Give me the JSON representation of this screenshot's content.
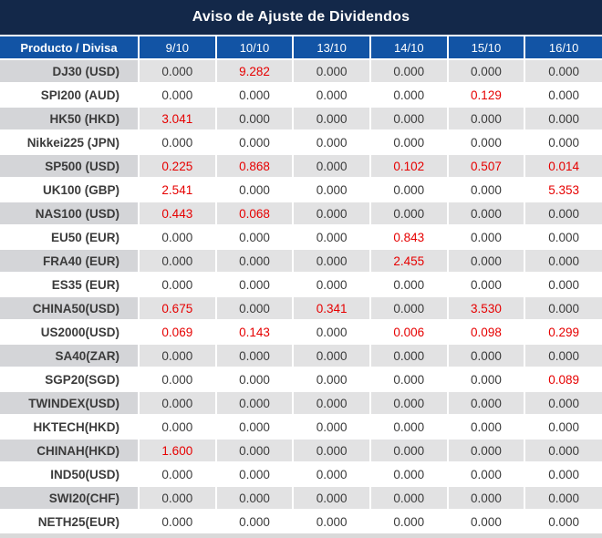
{
  "title": "Aviso de Ajuste de Dividendos",
  "colors": {
    "title_bg": "#132849",
    "header_bg": "#1254a5",
    "negative_value": "#e60000",
    "value_text": "#3b3b3b",
    "row_alt_bg": "#e2e2e3",
    "row_alt_name_bg": "#d4d5d8",
    "row_bg": "#ffffff"
  },
  "chart_data": {
    "type": "table",
    "title": "Aviso de Ajuste de Dividendos",
    "product_header": "Producto / Divisa",
    "date_columns": [
      "9/10",
      "10/10",
      "13/10",
      "14/10",
      "15/10",
      "16/10"
    ],
    "negative_color_meaning": "non-zero dividend adjustment shown in red",
    "rows": [
      {
        "product": "DJ30 (USD)",
        "values": [
          "0.000",
          "9.282",
          "0.000",
          "0.000",
          "0.000",
          "0.000"
        ],
        "red": [
          false,
          true,
          false,
          false,
          false,
          false
        ]
      },
      {
        "product": "SPI200 (AUD)",
        "values": [
          "0.000",
          "0.000",
          "0.000",
          "0.000",
          "0.129",
          "0.000"
        ],
        "red": [
          false,
          false,
          false,
          false,
          true,
          false
        ]
      },
      {
        "product": "HK50 (HKD)",
        "values": [
          "3.041",
          "0.000",
          "0.000",
          "0.000",
          "0.000",
          "0.000"
        ],
        "red": [
          true,
          false,
          false,
          false,
          false,
          false
        ]
      },
      {
        "product": "Nikkei225 (JPN)",
        "values": [
          "0.000",
          "0.000",
          "0.000",
          "0.000",
          "0.000",
          "0.000"
        ],
        "red": [
          false,
          false,
          false,
          false,
          false,
          false
        ]
      },
      {
        "product": "SP500 (USD)",
        "values": [
          "0.225",
          "0.868",
          "0.000",
          "0.102",
          "0.507",
          "0.014"
        ],
        "red": [
          true,
          true,
          false,
          true,
          true,
          true
        ]
      },
      {
        "product": "UK100 (GBP)",
        "values": [
          "2.541",
          "0.000",
          "0.000",
          "0.000",
          "0.000",
          "5.353"
        ],
        "red": [
          true,
          false,
          false,
          false,
          false,
          true
        ]
      },
      {
        "product": "NAS100 (USD)",
        "values": [
          "0.443",
          "0.068",
          "0.000",
          "0.000",
          "0.000",
          "0.000"
        ],
        "red": [
          true,
          true,
          false,
          false,
          false,
          false
        ]
      },
      {
        "product": "EU50 (EUR)",
        "values": [
          "0.000",
          "0.000",
          "0.000",
          "0.843",
          "0.000",
          "0.000"
        ],
        "red": [
          false,
          false,
          false,
          true,
          false,
          false
        ]
      },
      {
        "product": "FRA40 (EUR)",
        "values": [
          "0.000",
          "0.000",
          "0.000",
          "2.455",
          "0.000",
          "0.000"
        ],
        "red": [
          false,
          false,
          false,
          true,
          false,
          false
        ]
      },
      {
        "product": "ES35 (EUR)",
        "values": [
          "0.000",
          "0.000",
          "0.000",
          "0.000",
          "0.000",
          "0.000"
        ],
        "red": [
          false,
          false,
          false,
          false,
          false,
          false
        ]
      },
      {
        "product": "CHINA50(USD)",
        "values": [
          "0.675",
          "0.000",
          "0.341",
          "0.000",
          "3.530",
          "0.000"
        ],
        "red": [
          true,
          false,
          true,
          false,
          true,
          false
        ]
      },
      {
        "product": "US2000(USD)",
        "values": [
          "0.069",
          "0.143",
          "0.000",
          "0.006",
          "0.098",
          "0.299"
        ],
        "red": [
          true,
          true,
          false,
          true,
          true,
          true
        ]
      },
      {
        "product": "SA40(ZAR)",
        "values": [
          "0.000",
          "0.000",
          "0.000",
          "0.000",
          "0.000",
          "0.000"
        ],
        "red": [
          false,
          false,
          false,
          false,
          false,
          false
        ]
      },
      {
        "product": "SGP20(SGD)",
        "values": [
          "0.000",
          "0.000",
          "0.000",
          "0.000",
          "0.000",
          "0.089"
        ],
        "red": [
          false,
          false,
          false,
          false,
          false,
          true
        ]
      },
      {
        "product": "TWINDEX(USD)",
        "values": [
          "0.000",
          "0.000",
          "0.000",
          "0.000",
          "0.000",
          "0.000"
        ],
        "red": [
          false,
          false,
          false,
          false,
          false,
          false
        ]
      },
      {
        "product": "HKTECH(HKD)",
        "values": [
          "0.000",
          "0.000",
          "0.000",
          "0.000",
          "0.000",
          "0.000"
        ],
        "red": [
          false,
          false,
          false,
          false,
          false,
          false
        ]
      },
      {
        "product": "CHINAH(HKD)",
        "values": [
          "1.600",
          "0.000",
          "0.000",
          "0.000",
          "0.000",
          "0.000"
        ],
        "red": [
          true,
          false,
          false,
          false,
          false,
          false
        ]
      },
      {
        "product": "IND50(USD)",
        "values": [
          "0.000",
          "0.000",
          "0.000",
          "0.000",
          "0.000",
          "0.000"
        ],
        "red": [
          false,
          false,
          false,
          false,
          false,
          false
        ]
      },
      {
        "product": "SWI20(CHF)",
        "values": [
          "0.000",
          "0.000",
          "0.000",
          "0.000",
          "0.000",
          "0.000"
        ],
        "red": [
          false,
          false,
          false,
          false,
          false,
          false
        ]
      },
      {
        "product": "NETH25(EUR)",
        "values": [
          "0.000",
          "0.000",
          "0.000",
          "0.000",
          "0.000",
          "0.000"
        ],
        "red": [
          false,
          false,
          false,
          false,
          false,
          false
        ]
      }
    ]
  }
}
